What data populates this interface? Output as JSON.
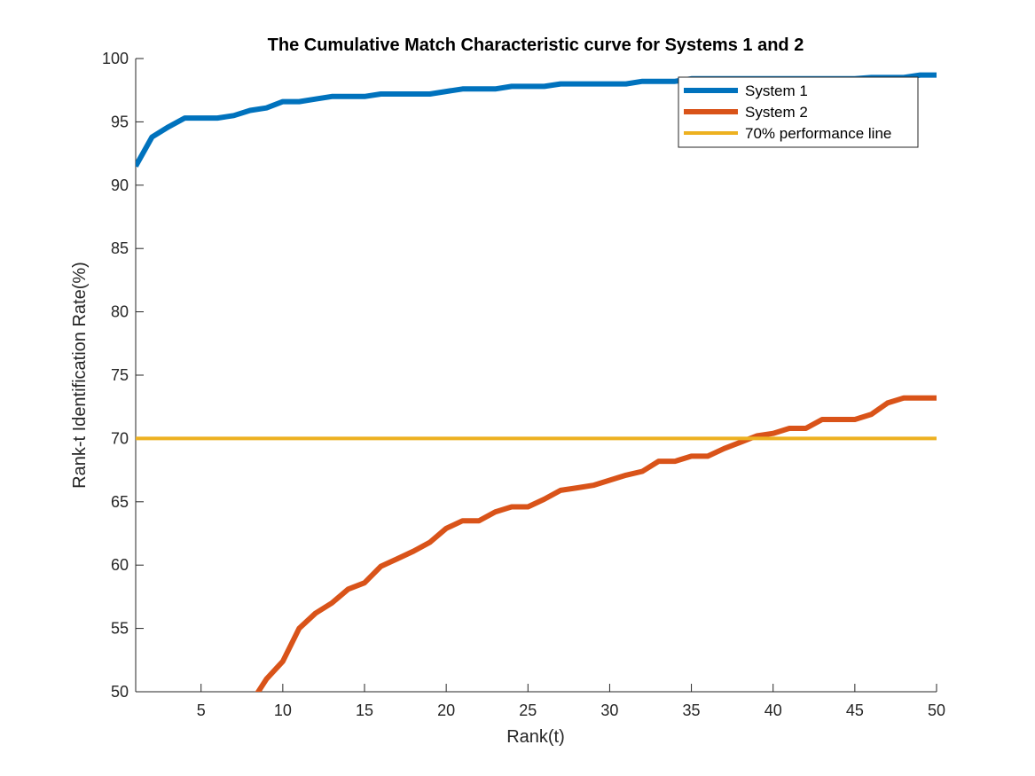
{
  "chart_data": {
    "type": "line",
    "title": "The Cumulative Match Characteristic curve for Systems 1 and 2",
    "xlabel": "Rank(t)",
    "ylabel": "Rank-t Identification Rate(%)",
    "xlim": [
      1,
      50
    ],
    "ylim": [
      50,
      100
    ],
    "xticks": [
      5,
      10,
      15,
      20,
      25,
      30,
      35,
      40,
      45,
      50
    ],
    "yticks": [
      50,
      55,
      60,
      65,
      70,
      75,
      80,
      85,
      90,
      95,
      100
    ],
    "grid": false,
    "legend_position": "top-right",
    "x": [
      1,
      2,
      3,
      4,
      5,
      6,
      7,
      8,
      9,
      10,
      11,
      12,
      13,
      14,
      15,
      16,
      17,
      18,
      19,
      20,
      21,
      22,
      23,
      24,
      25,
      26,
      27,
      28,
      29,
      30,
      31,
      32,
      33,
      34,
      35,
      36,
      37,
      38,
      39,
      40,
      41,
      42,
      43,
      44,
      45,
      46,
      47,
      48,
      49,
      50
    ],
    "series": [
      {
        "name": "System 1",
        "color": "#0072BD",
        "values": [
          91.5,
          93.8,
          94.6,
          95.3,
          95.3,
          95.3,
          95.5,
          95.9,
          96.1,
          96.6,
          96.6,
          96.8,
          97.0,
          97.0,
          97.0,
          97.2,
          97.2,
          97.2,
          97.2,
          97.4,
          97.6,
          97.6,
          97.6,
          97.8,
          97.8,
          97.8,
          98.0,
          98.0,
          98.0,
          98.0,
          98.0,
          98.2,
          98.2,
          98.2,
          98.4,
          98.4,
          98.4,
          98.4,
          98.4,
          98.4,
          98.4,
          98.4,
          98.4,
          98.4,
          98.4,
          98.5,
          98.5,
          98.5,
          98.7,
          98.7
        ]
      },
      {
        "name": "System 2",
        "color": "#D95319",
        "values": [
          null,
          null,
          null,
          null,
          null,
          null,
          null,
          49.0,
          51.0,
          52.4,
          55.0,
          56.2,
          57.0,
          58.1,
          58.6,
          59.9,
          60.5,
          61.1,
          61.8,
          62.9,
          63.5,
          63.5,
          64.2,
          64.6,
          64.6,
          65.2,
          65.9,
          66.1,
          66.3,
          66.7,
          67.1,
          67.4,
          68.2,
          68.2,
          68.6,
          68.6,
          69.2,
          69.7,
          70.2,
          70.4,
          70.8,
          70.8,
          71.5,
          71.5,
          71.5,
          71.9,
          72.8,
          73.2,
          73.2,
          73.2
        ]
      },
      {
        "name": "70% performance line",
        "color": "#EDB120",
        "values": [
          70,
          70,
          70,
          70,
          70,
          70,
          70,
          70,
          70,
          70,
          70,
          70,
          70,
          70,
          70,
          70,
          70,
          70,
          70,
          70,
          70,
          70,
          70,
          70,
          70,
          70,
          70,
          70,
          70,
          70,
          70,
          70,
          70,
          70,
          70,
          70,
          70,
          70,
          70,
          70,
          70,
          70,
          70,
          70,
          70,
          70,
          70,
          70,
          70,
          70
        ]
      }
    ]
  }
}
